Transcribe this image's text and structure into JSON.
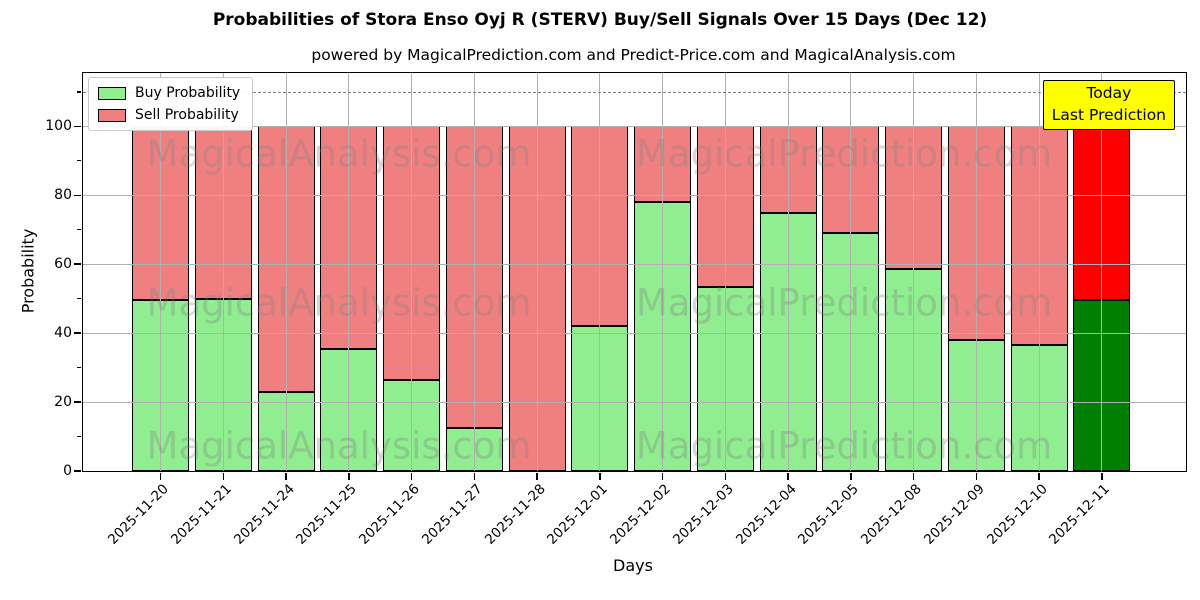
{
  "title": "Probabilities of Stora Enso Oyj R (STERV) Buy/Sell Signals Over 15 Days (Dec 12)",
  "subtitle": "powered by MagicalPrediction.com and Predict-Price.com and MagicalAnalysis.com",
  "legend": {
    "items": [
      {
        "label": "Buy Probability",
        "color": "#90EE90"
      },
      {
        "label": "Sell Probability",
        "color": "#F08080"
      }
    ]
  },
  "annotation_box": {
    "lines": [
      "Today",
      "Last Prediction"
    ],
    "bg_color": "#FFFF00"
  },
  "watermarks": {
    "left_text": "MagicalAnalysis.com",
    "right_text": "MagicalPrediction.com"
  },
  "axes": {
    "ylabel": "Probability",
    "xlabel": "Days",
    "yticks": [
      0,
      20,
      40,
      60,
      80,
      100
    ],
    "yticks_minor": [
      10,
      30,
      50,
      70,
      90,
      110
    ],
    "ymax": 115.5,
    "dashed_line_y": 110,
    "grid_color": "#b0b0b0",
    "dashed_line_color": "#7f7f7f"
  },
  "chart_data": {
    "type": "bar",
    "stacked": true,
    "title": "Probabilities of Stora Enso Oyj R (STERV) Buy/Sell Signals Over 15 Days (Dec 12)",
    "xlabel": "Days",
    "ylabel": "Probability",
    "ylim": [
      0,
      115.5
    ],
    "categories": [
      "2025-11-20",
      "2025-11-21",
      "2025-11-24",
      "2025-11-25",
      "2025-11-26",
      "2025-11-27",
      "2025-11-28",
      "2025-12-01",
      "2025-12-02",
      "2025-12-03",
      "2025-12-04",
      "2025-12-05",
      "2025-12-08",
      "2025-12-09",
      "2025-12-10",
      "2025-12-11"
    ],
    "series": [
      {
        "name": "Buy Probability",
        "color": "#90EE90",
        "values": [
          49.5,
          50,
          23,
          35.5,
          26.5,
          12.5,
          0,
          42,
          78,
          53.5,
          75,
          69,
          58.5,
          38,
          36.5,
          49.5
        ]
      },
      {
        "name": "Sell Probability",
        "color": "#F08080",
        "values": [
          50.5,
          50,
          77,
          64.5,
          73.5,
          87.5,
          100,
          58,
          22,
          46.5,
          25,
          31,
          41.5,
          62,
          63.5,
          50.5
        ]
      }
    ],
    "today_index": 15,
    "today_colors": {
      "buy": "#008000",
      "sell": "#FF0000"
    },
    "bar_edge_color": "#000000",
    "legend_position": "upper left"
  }
}
